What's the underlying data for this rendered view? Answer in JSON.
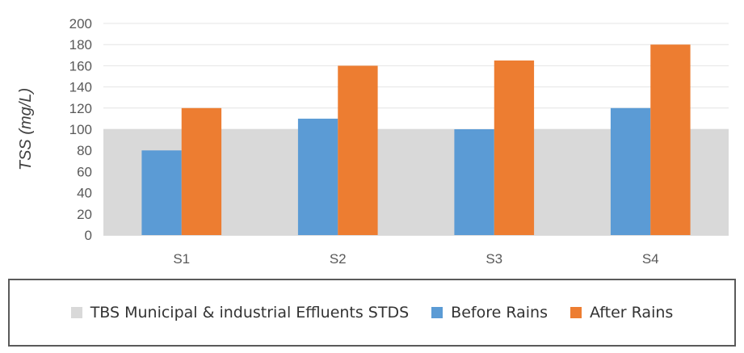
{
  "chart_data": {
    "type": "bar",
    "categories": [
      "S1",
      "S2",
      "S3",
      "S4"
    ],
    "ylabel": "TSS (mg/L)",
    "ylim": [
      0,
      200
    ],
    "yticks": [
      0,
      20,
      40,
      60,
      80,
      100,
      120,
      140,
      160,
      180,
      200
    ],
    "grid": true,
    "legend_position": "bottom",
    "series": [
      {
        "name": "TBS Municipal & industrial Effluents STDS",
        "type": "area",
        "values": [
          100,
          100,
          100,
          100
        ],
        "color": "#d9d9d9"
      },
      {
        "name": "Before Rains",
        "type": "bar",
        "values": [
          80,
          110,
          100,
          120
        ],
        "color": "#5b9bd5"
      },
      {
        "name": "After Rains",
        "type": "bar",
        "values": [
          120,
          160,
          165,
          180
        ],
        "color": "#ed7d31"
      }
    ]
  }
}
